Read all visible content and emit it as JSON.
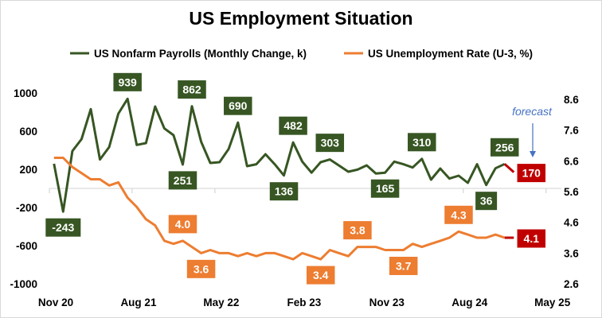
{
  "chart_data": {
    "type": "line",
    "title": "US Employment Situation",
    "x_tick_labels": [
      "Nov 20",
      "Aug 21",
      "May 22",
      "Feb 23",
      "Nov 23",
      "Aug 24",
      "May 25"
    ],
    "x_start": "Nov 20",
    "x_unit": "month",
    "y_left": {
      "ticks": [
        1000,
        600,
        200,
        -200,
        -600,
        -1000
      ],
      "range": [
        -1000,
        1000
      ]
    },
    "y_right": {
      "ticks": [
        "8.6",
        "7.6",
        "6.6",
        "5.6",
        "4.6",
        "3.6",
        "2.6"
      ],
      "range": [
        2.6,
        8.6
      ]
    },
    "grid": false,
    "legend": "top",
    "series": [
      {
        "name": "US Nonfarm Payrolls (Monthly Change, k)",
        "axis": "left",
        "color": "#375623",
        "values": [
          258,
          -243,
          392,
          517,
          831,
          303,
          433,
          783,
          939,
          456,
          475,
          858,
          628,
          558,
          251,
          862,
          489,
          267,
          275,
          414,
          690,
          233,
          253,
          358,
          253,
          136,
          482,
          281,
          165,
          275,
          303,
          239,
          175,
          197,
          242,
          156,
          165,
          281,
          253,
          219,
          310,
          92,
          208,
          103,
          133,
          58,
          253,
          36,
          211,
          256
        ],
        "forecast": 170,
        "labels": [
          {
            "index": 1,
            "text": "-243",
            "pos": "below"
          },
          {
            "index": 8,
            "text": "939",
            "pos": "above"
          },
          {
            "index": 14,
            "text": "251",
            "pos": "below"
          },
          {
            "index": 15,
            "text": "862",
            "pos": "above"
          },
          {
            "index": 20,
            "text": "690",
            "pos": "above"
          },
          {
            "index": 25,
            "text": "136",
            "pos": "below"
          },
          {
            "index": 26,
            "text": "482",
            "pos": "above"
          },
          {
            "index": 30,
            "text": "303",
            "pos": "above"
          },
          {
            "index": 36,
            "text": "165",
            "pos": "below"
          },
          {
            "index": 40,
            "text": "310",
            "pos": "above"
          },
          {
            "index": 47,
            "text": "36",
            "pos": "below"
          },
          {
            "index": 49,
            "text": "256",
            "pos": "above"
          }
        ],
        "forecast_label": "170"
      },
      {
        "name": "US Unemployment Rate (U-3, %)",
        "axis": "right",
        "color": "#ED7D31",
        "values": [
          6.7,
          6.7,
          6.4,
          6.2,
          6.0,
          6.0,
          5.8,
          5.9,
          5.4,
          5.1,
          4.7,
          4.5,
          4.0,
          3.9,
          4.0,
          3.8,
          3.6,
          3.7,
          3.6,
          3.6,
          3.5,
          3.6,
          3.5,
          3.6,
          3.6,
          3.5,
          3.4,
          3.6,
          3.5,
          3.4,
          3.7,
          3.6,
          3.5,
          3.8,
          3.8,
          3.8,
          3.7,
          3.7,
          3.7,
          3.9,
          3.8,
          3.9,
          4.0,
          4.1,
          4.3,
          4.2,
          4.1,
          4.1,
          4.2,
          4.1
        ],
        "forecast": 4.1,
        "labels": [
          {
            "index": 14,
            "text": "4.0",
            "pos": "above"
          },
          {
            "index": 16,
            "text": "3.6",
            "pos": "below"
          },
          {
            "index": 29,
            "text": "3.4",
            "pos": "below"
          },
          {
            "index": 33,
            "text": "3.8",
            "pos": "above"
          },
          {
            "index": 38,
            "text": "3.7",
            "pos": "below"
          },
          {
            "index": 44,
            "text": "4.3",
            "pos": "above"
          }
        ],
        "forecast_label": "4.1"
      }
    ],
    "forecast_color": "#C00000",
    "annotation": {
      "text": "forecast",
      "color": "#4472C4"
    }
  }
}
